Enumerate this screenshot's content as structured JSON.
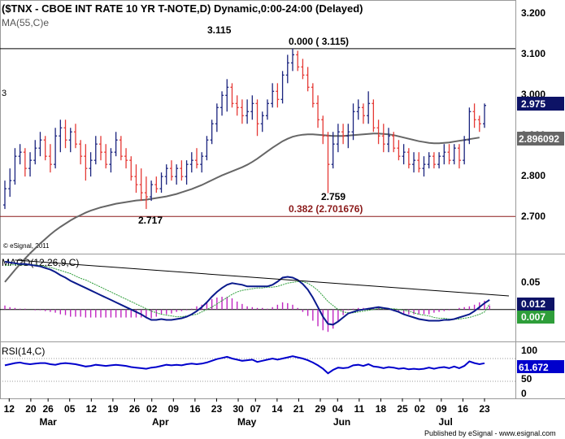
{
  "header": {
    "title": "($TNX - CBOE INT RATE 10 YR T-NOTE,D) Dynamic,0:00-24:00 (Delayed)",
    "ma_label": "MA(55,C)e",
    "side_marker": "3",
    "watermark": "© eSignal, 2011"
  },
  "colors": {
    "up_bar": "#1a237e",
    "down_bar": "#e53935",
    "ma_line": "#666666",
    "macd_line": "#0a1a8c",
    "signal_line": "#2e9e3a",
    "histogram": "#c026c0",
    "rsi_line": "#0000cc",
    "retrace_line": "#8b1a1a",
    "border": "#9a9a9a"
  },
  "chart_data": [
    {
      "type": "bar",
      "subtype": "ohlc",
      "name": "price",
      "title": "($TNX - CBOE INT RATE 10 YR T-NOTE,D) Dynamic,0:00-24:00 (Delayed)",
      "ylim": [
        2.61,
        3.235
      ],
      "y_ticks": [
        "3.200",
        "3.100",
        "3.000",
        "2.900",
        "2.800",
        "2.700"
      ],
      "last_value": "2.975",
      "ma_value": "2.896092",
      "ma_name": "MA(55,C)e",
      "ohlc": [
        [
          2.73,
          2.79,
          2.72,
          2.77
        ],
        [
          2.77,
          2.82,
          2.75,
          2.79
        ],
        [
          2.79,
          2.87,
          2.78,
          2.85
        ],
        [
          2.85,
          2.88,
          2.83,
          2.86
        ],
        [
          2.86,
          2.87,
          2.8,
          2.82
        ],
        [
          2.82,
          2.86,
          2.8,
          2.84
        ],
        [
          2.84,
          2.89,
          2.83,
          2.87
        ],
        [
          2.87,
          2.91,
          2.85,
          2.89
        ],
        [
          2.89,
          2.9,
          2.84,
          2.85
        ],
        [
          2.85,
          2.88,
          2.81,
          2.83
        ],
        [
          2.83,
          2.92,
          2.82,
          2.9
        ],
        [
          2.9,
          2.94,
          2.86,
          2.92
        ],
        [
          2.92,
          2.94,
          2.87,
          2.89
        ],
        [
          2.89,
          2.92,
          2.86,
          2.91
        ],
        [
          2.91,
          2.93,
          2.87,
          2.88
        ],
        [
          2.88,
          2.89,
          2.83,
          2.85
        ],
        [
          2.85,
          2.88,
          2.79,
          2.82
        ],
        [
          2.82,
          2.86,
          2.8,
          2.84
        ],
        [
          2.84,
          2.9,
          2.83,
          2.88
        ],
        [
          2.88,
          2.9,
          2.84,
          2.86
        ],
        [
          2.86,
          2.88,
          2.82,
          2.83
        ],
        [
          2.83,
          2.87,
          2.81,
          2.86
        ],
        [
          2.86,
          2.91,
          2.85,
          2.89
        ],
        [
          2.89,
          2.9,
          2.84,
          2.85
        ],
        [
          2.85,
          2.87,
          2.82,
          2.84
        ],
        [
          2.84,
          2.85,
          2.79,
          2.8
        ],
        [
          2.8,
          2.83,
          2.76,
          2.78
        ],
        [
          2.78,
          2.82,
          2.74,
          2.76
        ],
        [
          2.76,
          2.8,
          2.72,
          2.75
        ],
        [
          2.75,
          2.79,
          2.74,
          2.78
        ],
        [
          2.78,
          2.8,
          2.76,
          2.77
        ],
        [
          2.77,
          2.81,
          2.76,
          2.8
        ],
        [
          2.8,
          2.83,
          2.78,
          2.82
        ],
        [
          2.82,
          2.84,
          2.79,
          2.8
        ],
        [
          2.8,
          2.83,
          2.78,
          2.82
        ],
        [
          2.82,
          2.84,
          2.79,
          2.8
        ],
        [
          2.8,
          2.84,
          2.78,
          2.83
        ],
        [
          2.83,
          2.86,
          2.81,
          2.84
        ],
        [
          2.84,
          2.87,
          2.82,
          2.83
        ],
        [
          2.83,
          2.86,
          2.81,
          2.85
        ],
        [
          2.85,
          2.9,
          2.84,
          2.89
        ],
        [
          2.89,
          2.94,
          2.88,
          2.93
        ],
        [
          2.93,
          2.98,
          2.91,
          2.97
        ],
        [
          2.97,
          3.01,
          2.95,
          3.0
        ],
        [
          3.0,
          3.04,
          2.96,
          3.02
        ],
        [
          3.02,
          3.03,
          2.97,
          2.98
        ],
        [
          2.98,
          3.0,
          2.95,
          2.97
        ],
        [
          2.97,
          2.99,
          2.93,
          2.95
        ],
        [
          2.95,
          2.99,
          2.93,
          2.96
        ],
        [
          2.96,
          3.0,
          2.94,
          2.98
        ],
        [
          2.98,
          2.99,
          2.9,
          2.93
        ],
        [
          2.93,
          2.96,
          2.91,
          2.95
        ],
        [
          2.95,
          2.99,
          2.94,
          2.98
        ],
        [
          2.98,
          3.03,
          2.97,
          3.01
        ],
        [
          3.01,
          3.03,
          2.97,
          2.99
        ],
        [
          2.99,
          3.06,
          2.98,
          3.05
        ],
        [
          3.05,
          3.1,
          3.03,
          3.08
        ],
        [
          3.08,
          3.115,
          3.06,
          3.1
        ],
        [
          3.1,
          3.11,
          3.06,
          3.07
        ],
        [
          3.07,
          3.09,
          3.04,
          3.05
        ],
        [
          3.05,
          3.07,
          3.01,
          3.02
        ],
        [
          3.02,
          3.03,
          2.97,
          2.98
        ],
        [
          2.98,
          3.0,
          2.92,
          2.94
        ],
        [
          2.94,
          2.95,
          2.88,
          2.9
        ],
        [
          2.9,
          2.91,
          2.759,
          2.83
        ],
        [
          2.83,
          2.91,
          2.82,
          2.88
        ],
        [
          2.88,
          2.93,
          2.86,
          2.91
        ],
        [
          2.91,
          2.93,
          2.88,
          2.9
        ],
        [
          2.9,
          2.93,
          2.87,
          2.91
        ],
        [
          2.91,
          2.98,
          2.89,
          2.96
        ],
        [
          2.96,
          2.99,
          2.94,
          2.97
        ],
        [
          2.97,
          2.98,
          2.93,
          2.95
        ],
        [
          2.95,
          3.01,
          2.93,
          2.98
        ],
        [
          2.98,
          2.99,
          2.91,
          2.92
        ],
        [
          2.92,
          2.94,
          2.88,
          2.9
        ],
        [
          2.9,
          2.93,
          2.86,
          2.88
        ],
        [
          2.88,
          2.92,
          2.86,
          2.9
        ],
        [
          2.9,
          2.91,
          2.86,
          2.87
        ],
        [
          2.87,
          2.89,
          2.84,
          2.85
        ],
        [
          2.85,
          2.88,
          2.83,
          2.86
        ],
        [
          2.86,
          2.87,
          2.82,
          2.83
        ],
        [
          2.83,
          2.86,
          2.81,
          2.84
        ],
        [
          2.84,
          2.86,
          2.81,
          2.82
        ],
        [
          2.82,
          2.85,
          2.8,
          2.83
        ],
        [
          2.83,
          2.86,
          2.82,
          2.85
        ],
        [
          2.85,
          2.86,
          2.82,
          2.83
        ],
        [
          2.83,
          2.86,
          2.82,
          2.85
        ],
        [
          2.85,
          2.88,
          2.83,
          2.86
        ],
        [
          2.86,
          2.88,
          2.83,
          2.84
        ],
        [
          2.84,
          2.88,
          2.83,
          2.87
        ],
        [
          2.87,
          2.88,
          2.82,
          2.84
        ],
        [
          2.84,
          2.9,
          2.83,
          2.89
        ],
        [
          2.89,
          2.97,
          2.88,
          2.96
        ],
        [
          2.96,
          2.98,
          2.92,
          2.94
        ],
        [
          2.94,
          2.95,
          2.91,
          2.93
        ],
        [
          2.93,
          2.98,
          2.92,
          2.975
        ]
      ],
      "ma": [
        2.54,
        2.555,
        2.57,
        2.584,
        2.598,
        2.611,
        2.623,
        2.635,
        2.646,
        2.657,
        2.667,
        2.676,
        2.684,
        2.692,
        2.699,
        2.705,
        2.711,
        2.716,
        2.72,
        2.724,
        2.727,
        2.73,
        2.733,
        2.735,
        2.737,
        2.739,
        2.741,
        2.742,
        2.743,
        2.745,
        2.747,
        2.749,
        2.751,
        2.754,
        2.757,
        2.761,
        2.765,
        2.769,
        2.774,
        2.779,
        2.785,
        2.791,
        2.797,
        2.803,
        2.808,
        2.813,
        2.818,
        2.823,
        2.829,
        2.836,
        2.844,
        2.853,
        2.862,
        2.871,
        2.879,
        2.887,
        2.893,
        2.898,
        2.901,
        2.903,
        2.904,
        2.904,
        2.903,
        2.902,
        2.901,
        2.9,
        2.9,
        2.9,
        2.901,
        2.902,
        2.903,
        2.904,
        2.905,
        2.906,
        2.906,
        2.905,
        2.904,
        2.902,
        2.899,
        2.896,
        2.893,
        2.89,
        2.887,
        2.885,
        2.883,
        2.882,
        2.882,
        2.883,
        2.884,
        2.886,
        2.888,
        2.89,
        2.892,
        2.894,
        2.896092
      ],
      "annotations": [
        {
          "text": "3.115",
          "x_index": 57,
          "y": 3.115
        },
        {
          "text": "0.000 ( 3.115)",
          "x_index": 57,
          "y": 3.115,
          "level": 3.115
        },
        {
          "text": "2.759",
          "x_index": 64,
          "y": 2.759
        },
        {
          "text": "0.382 (2.701676)",
          "x_index": 64,
          "y": 2.701676,
          "level": 2.701676
        },
        {
          "text": "2.717",
          "x_index": 28,
          "y": 2.717
        }
      ]
    },
    {
      "type": "line",
      "name": "macd",
      "title": "MACD(12,26,9,C)",
      "ylim": [
        -0.04,
        0.07
      ],
      "y_ticks": [
        "0.05"
      ],
      "last_macd": "0.012",
      "last_signal": "0.007",
      "macd": [
        0.06,
        0.059,
        0.058,
        0.057,
        0.057,
        0.056,
        0.055,
        0.054,
        0.052,
        0.05,
        0.047,
        0.043,
        0.04,
        0.036,
        0.033,
        0.03,
        0.027,
        0.024,
        0.021,
        0.018,
        0.015,
        0.012,
        0.009,
        0.006,
        0.003,
        0.0,
        -0.003,
        -0.006,
        -0.01,
        -0.013,
        -0.013,
        -0.012,
        -0.013,
        -0.013,
        -0.012,
        -0.011,
        -0.009,
        -0.006,
        -0.002,
        0.003,
        0.009,
        0.016,
        0.022,
        0.027,
        0.031,
        0.033,
        0.032,
        0.031,
        0.029,
        0.029,
        0.029,
        0.029,
        0.029,
        0.031,
        0.035,
        0.04,
        0.041,
        0.04,
        0.037,
        0.032,
        0.025,
        0.015,
        0.003,
        -0.009,
        -0.018,
        -0.019,
        -0.015,
        -0.01,
        -0.005,
        -0.003,
        -0.001,
        0.0,
        0.001,
        0.002,
        0.003,
        0.002,
        0.001,
        -0.001,
        -0.003,
        -0.006,
        -0.008,
        -0.01,
        -0.012,
        -0.013,
        -0.014,
        -0.014,
        -0.014,
        -0.013,
        -0.013,
        -0.012,
        -0.01,
        -0.008,
        -0.006,
        -0.002,
        0.003,
        0.008,
        0.012
      ],
      "signal": [
        0.055,
        0.056,
        0.056,
        0.056,
        0.056,
        0.056,
        0.056,
        0.055,
        0.054,
        0.053,
        0.051,
        0.049,
        0.047,
        0.045,
        0.042,
        0.039,
        0.037,
        0.034,
        0.031,
        0.028,
        0.025,
        0.022,
        0.019,
        0.016,
        0.013,
        0.01,
        0.007,
        0.004,
        0.001,
        -0.002,
        -0.004,
        -0.006,
        -0.007,
        -0.008,
        -0.009,
        -0.009,
        -0.008,
        -0.007,
        -0.006,
        -0.003,
        0.0,
        0.003,
        0.007,
        0.011,
        0.015,
        0.019,
        0.022,
        0.024,
        0.025,
        0.026,
        0.027,
        0.027,
        0.028,
        0.028,
        0.029,
        0.031,
        0.033,
        0.034,
        0.035,
        0.035,
        0.033,
        0.029,
        0.024,
        0.017,
        0.01,
        0.005,
        0.0,
        -0.003,
        -0.004,
        -0.004,
        -0.003,
        -0.002,
        -0.001,
        0.0,
        0.001,
        0.001,
        0.001,
        0.001,
        0.0,
        -0.001,
        -0.002,
        -0.004,
        -0.006,
        -0.007,
        -0.008,
        -0.01,
        -0.011,
        -0.011,
        -0.012,
        -0.012,
        -0.012,
        -0.011,
        -0.01,
        -0.008,
        -0.006,
        -0.003,
        0.007
      ],
      "histogram": [
        0.005,
        0.003,
        0.002,
        0.001,
        0.001,
        0.0,
        -0.001,
        -0.001,
        -0.002,
        -0.003,
        -0.004,
        -0.006,
        -0.007,
        -0.009,
        -0.009,
        -0.009,
        -0.01,
        -0.01,
        -0.01,
        -0.01,
        -0.01,
        -0.01,
        -0.01,
        -0.01,
        -0.01,
        -0.01,
        -0.01,
        -0.01,
        -0.011,
        -0.011,
        -0.009,
        -0.006,
        -0.006,
        -0.005,
        -0.003,
        -0.002,
        -0.001,
        0.001,
        0.004,
        0.006,
        0.009,
        0.013,
        0.015,
        0.016,
        0.016,
        0.014,
        0.01,
        0.007,
        0.004,
        0.003,
        0.002,
        0.002,
        0.001,
        0.003,
        0.006,
        0.009,
        0.008,
        0.006,
        0.002,
        -0.003,
        -0.008,
        -0.014,
        -0.021,
        -0.026,
        -0.028,
        -0.024,
        -0.015,
        -0.007,
        -0.001,
        0.001,
        0.002,
        0.002,
        0.002,
        0.002,
        0.002,
        0.001,
        0.0,
        -0.002,
        -0.003,
        -0.005,
        -0.006,
        -0.006,
        -0.006,
        -0.006,
        -0.006,
        -0.004,
        -0.003,
        -0.002,
        -0.001,
        0.0,
        0.002,
        0.003,
        0.004,
        0.006,
        0.009,
        0.011,
        0.005
      ],
      "trendline": [
        [
          2,
          0.062
        ],
        [
          95,
          0.016
        ]
      ]
    },
    {
      "type": "line",
      "name": "rsi",
      "title": "RSI(14,C)",
      "ylim": [
        0,
        100
      ],
      "y_ticks": [
        "100",
        "50",
        "0"
      ],
      "last_value": "61.672",
      "values": [
        58,
        60,
        62,
        63,
        61,
        60,
        61,
        62,
        62,
        60,
        59,
        61,
        62,
        61,
        60,
        58,
        56,
        57,
        59,
        58,
        57,
        58,
        59,
        58,
        57,
        55,
        54,
        53,
        52,
        54,
        55,
        57,
        59,
        58,
        59,
        58,
        60,
        61,
        60,
        61,
        63,
        66,
        69,
        71,
        73,
        70,
        68,
        66,
        67,
        68,
        64,
        66,
        68,
        70,
        68,
        70,
        72,
        74,
        72,
        70,
        67,
        63,
        58,
        52,
        44,
        50,
        54,
        53,
        54,
        58,
        59,
        57,
        60,
        56,
        55,
        53,
        55,
        54,
        52,
        53,
        51,
        52,
        51,
        52,
        54,
        52,
        54,
        55,
        53,
        56,
        53,
        57,
        65,
        62,
        60,
        61.672
      ]
    }
  ],
  "x_axis": {
    "day_ticks": [
      {
        "label": "12",
        "x_index": 1
      },
      {
        "label": "20",
        "x_index": 6
      },
      {
        "label": "26",
        "x_index": 10
      },
      {
        "label": "05",
        "x_index": 15
      },
      {
        "label": "12",
        "x_index": 20
      },
      {
        "label": "19",
        "x_index": 25
      },
      {
        "label": "26",
        "x_index": 30
      },
      {
        "label": "02",
        "x_index": 34
      },
      {
        "label": "09",
        "x_index": 39
      },
      {
        "label": "16",
        "x_index": 44
      },
      {
        "label": "23",
        "x_index": 49
      },
      {
        "label": "30",
        "x_index": 54
      },
      {
        "label": "07",
        "x_index": 58
      },
      {
        "label": "14",
        "x_index": 63
      },
      {
        "label": "21",
        "x_index": 68
      },
      {
        "label": "29",
        "x_index": 73
      },
      {
        "label": "04",
        "x_index": 77
      },
      {
        "label": "11",
        "x_index": 82
      },
      {
        "label": "18",
        "x_index": 87
      },
      {
        "label": "25",
        "x_index": 92
      },
      {
        "label": "02",
        "x_index": 96
      },
      {
        "label": "09",
        "x_index": 101
      },
      {
        "label": "16",
        "x_index": 106
      },
      {
        "label": "23",
        "x_index": 111
      }
    ],
    "month_ticks": [
      {
        "label": "Mar",
        "x_index": 10
      },
      {
        "label": "Apr",
        "x_index": 36
      },
      {
        "label": "May",
        "x_index": 56
      },
      {
        "label": "Jun",
        "x_index": 78
      },
      {
        "label": "Jul",
        "x_index": 102
      }
    ]
  },
  "footer": {
    "published": "Published by eSignal - www.esignal.com"
  }
}
